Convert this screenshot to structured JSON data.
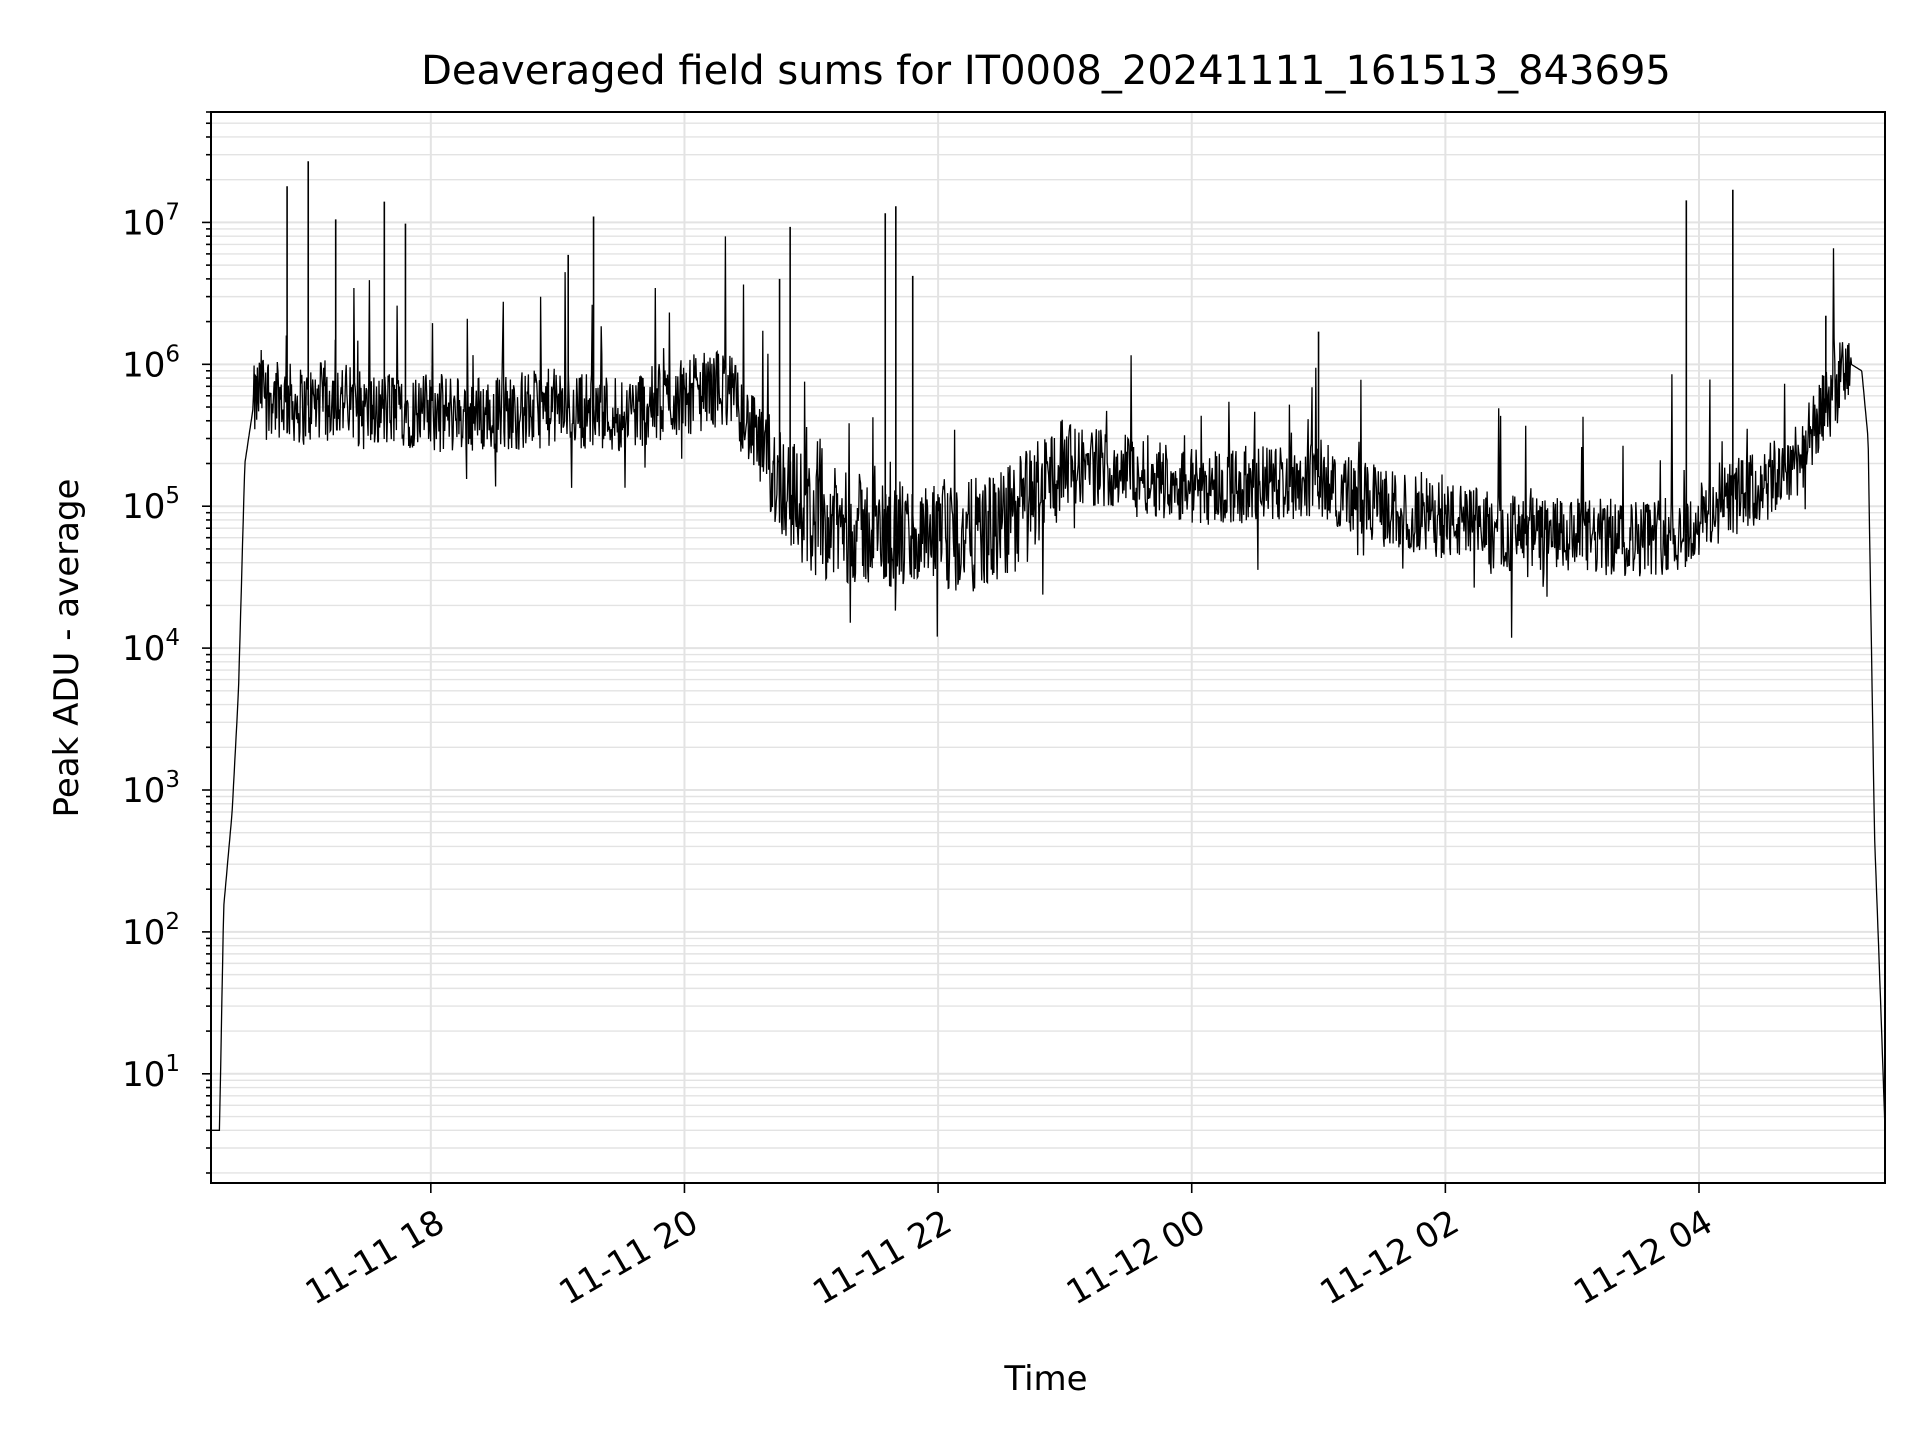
{
  "chart_data": {
    "type": "line",
    "title": "Deaveraged field sums for IT0008_20241111_161513_843695",
    "xlabel": "Time",
    "ylabel": "Peak ADU - average",
    "yscale": "log",
    "ylim": [
      1.7,
      60000000
    ],
    "xlim": [
      "2024-11-11 16:16",
      "2024-11-12 05:28"
    ],
    "grid": true,
    "line_color": "#000000",
    "x_ticks": [
      {
        "label": "11-11 18",
        "value": "2024-11-11 18:00"
      },
      {
        "label": "11-11 20",
        "value": "2024-11-11 20:00"
      },
      {
        "label": "11-11 22",
        "value": "2024-11-11 22:00"
      },
      {
        "label": "11-12 00",
        "value": "2024-11-12 00:00"
      },
      {
        "label": "11-12 02",
        "value": "2024-11-12 02:00"
      },
      {
        "label": "11-12 04",
        "value": "2024-11-12 04:00"
      }
    ],
    "y_ticks": [
      {
        "base": "10",
        "exp": "1",
        "value": 10
      },
      {
        "base": "10",
        "exp": "2",
        "value": 100
      },
      {
        "base": "10",
        "exp": "3",
        "value": 1000
      },
      {
        "base": "10",
        "exp": "4",
        "value": 10000
      },
      {
        "base": "10",
        "exp": "5",
        "value": 100000
      },
      {
        "base": "10",
        "exp": "6",
        "value": 1000000
      },
      {
        "base": "10",
        "exp": "7",
        "value": 10000000
      }
    ],
    "series": [
      {
        "x": [
          "2024-11-11 16:16",
          "2024-11-11 16:20",
          "2024-11-11 16:22",
          "2024-11-11 16:26",
          "2024-11-11 16:29",
          "2024-11-11 16:32",
          "2024-11-11 16:36",
          "2024-11-11 16:40",
          "2024-11-11 16:45",
          "2024-11-11 16:52",
          "2024-11-11 17:00",
          "2024-11-11 17:15",
          "2024-11-11 17:30",
          "2024-11-11 17:45",
          "2024-11-11 18:00",
          "2024-11-11 18:30",
          "2024-11-11 19:00",
          "2024-11-11 19:30",
          "2024-11-11 20:00",
          "2024-11-11 20:20",
          "2024-11-11 20:40",
          "2024-11-11 21:00",
          "2024-11-11 21:30",
          "2024-11-11 22:00",
          "2024-11-11 22:30",
          "2024-11-11 22:45",
          "2024-11-11 23:00",
          "2024-11-11 23:30",
          "2024-11-12 00:00",
          "2024-11-12 00:30",
          "2024-11-12 01:00",
          "2024-11-12 01:20",
          "2024-11-12 01:40",
          "2024-11-12 02:00",
          "2024-11-12 02:30",
          "2024-11-12 03:00",
          "2024-11-12 03:30",
          "2024-11-12 03:55",
          "2024-11-12 04:10",
          "2024-11-12 04:30",
          "2024-11-12 04:50",
          "2024-11-12 05:05",
          "2024-11-12 05:12",
          "2024-11-12 05:17",
          "2024-11-12 05:20",
          "2024-11-12 05:23",
          "2024-11-12 05:26",
          "2024-11-12 05:28"
        ],
        "y": [
          4,
          4,
          150,
          700,
          5000,
          200000,
          500000,
          700000,
          600000,
          550000,
          500000,
          600000,
          450000,
          500000,
          450000,
          450000,
          500000,
          450000,
          600000,
          700000,
          200000,
          80000,
          65000,
          55000,
          70000,
          120000,
          200000,
          180000,
          140000,
          140000,
          160000,
          110000,
          90000,
          80000,
          65000,
          60000,
          60000,
          65000,
          110000,
          130000,
          250000,
          700000,
          1000000,
          900000,
          300000,
          500,
          30,
          4
        ]
      }
    ],
    "spikes": [
      {
        "x": "2024-11-11 16:52",
        "y": 18000000
      },
      {
        "x": "2024-11-11 17:02",
        "y": 27000000
      },
      {
        "x": "2024-11-11 17:15",
        "y": 10500000
      },
      {
        "x": "2024-11-11 17:38",
        "y": 14000000
      },
      {
        "x": "2024-11-11 17:48",
        "y": 9800000
      },
      {
        "x": "2024-11-11 19:17",
        "y": 11000000
      },
      {
        "x": "2024-11-11 19:05",
        "y": 5900000
      },
      {
        "x": "2024-11-11 20:45",
        "y": 4000000
      },
      {
        "x": "2024-11-11 20:50",
        "y": 9300000
      },
      {
        "x": "2024-11-11 21:35",
        "y": 11600000
      },
      {
        "x": "2024-11-11 21:40",
        "y": 13000000
      },
      {
        "x": "2024-11-11 21:48",
        "y": 4200000
      },
      {
        "x": "2024-11-12 01:00",
        "y": 1700000
      },
      {
        "x": "2024-11-12 03:54",
        "y": 14300000
      },
      {
        "x": "2024-11-12 04:16",
        "y": 17000000
      },
      {
        "x": "2024-11-12 05:00",
        "y": 2200000
      }
    ]
  }
}
